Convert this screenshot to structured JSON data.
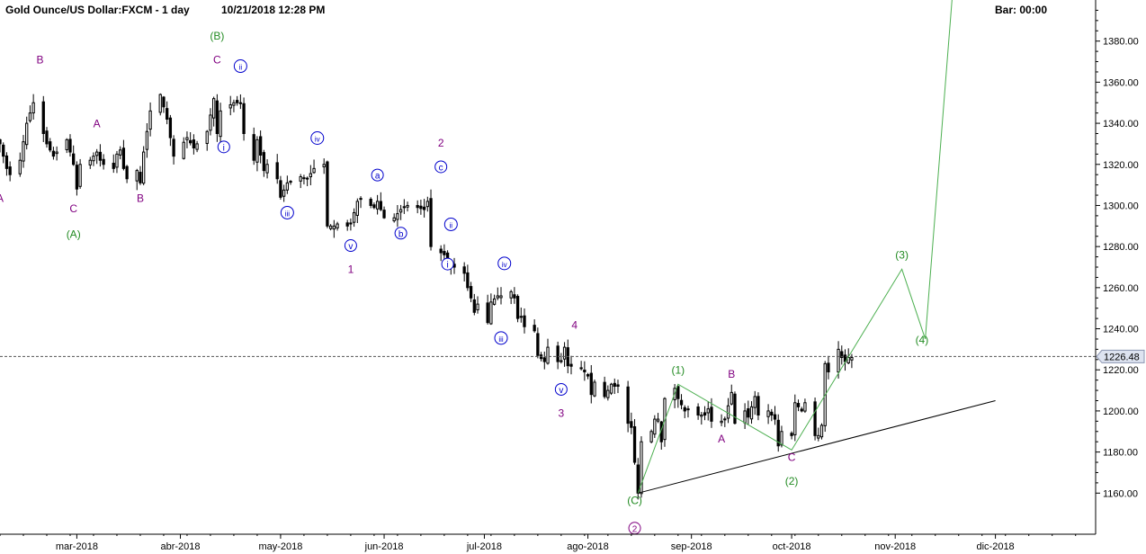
{
  "header": {
    "title": "Gold Ounce/US Dollar:FXCM - 1 day",
    "datetime": "10/21/2018 12:28 PM",
    "bar_label": "Bar: 00:00"
  },
  "colors": {
    "background": "#ffffff",
    "candle": "#000000",
    "wave_green": "#228b22",
    "wave_purple": "#800080",
    "wave_blue": "#0000cc",
    "projection_line": "#4caf50",
    "trendline": "#000000",
    "price_tag": "#dde3f0"
  },
  "chart_data": {
    "type": "candlestick",
    "title": "Gold Ounce/US Dollar:FXCM - 1 day",
    "x_axis": {
      "type": "date",
      "range": [
        "2018-02-06",
        "2018-12-31"
      ],
      "ticks": [
        {
          "date": "2018-03-01",
          "label": "mar-2018"
        },
        {
          "date": "2018-04-01",
          "label": "abr-2018"
        },
        {
          "date": "2018-05-01",
          "label": "may-2018"
        },
        {
          "date": "2018-06-01",
          "label": "jun-2018"
        },
        {
          "date": "2018-07-01",
          "label": "jul-2018"
        },
        {
          "date": "2018-08-01",
          "label": "ago-2018"
        },
        {
          "date": "2018-09-01",
          "label": "sep-2018"
        },
        {
          "date": "2018-10-01",
          "label": "oct-2018"
        },
        {
          "date": "2018-11-01",
          "label": "nov-2018"
        },
        {
          "date": "2018-12-01",
          "label": "dic-2018"
        }
      ]
    },
    "y_axis": {
      "range": [
        1140,
        1400
      ],
      "ticks": [
        1160,
        1180,
        1200,
        1220,
        1240,
        1260,
        1280,
        1300,
        1320,
        1340,
        1360,
        1380
      ],
      "tick_labels": [
        "1160.00",
        "1180.00",
        "1200.00",
        "1220.00",
        "1240.00",
        "1260.00",
        "1280.00",
        "1300.00",
        "1320.00",
        "1340.00",
        "1360.00",
        "1380.00"
      ],
      "side": "right"
    },
    "current_price": {
      "value": 1226.48,
      "label": "1226.48"
    },
    "price_path": [
      [
        "2018-02-06",
        1330
      ],
      [
        "2018-02-08",
        1318
      ],
      [
        "2018-02-09",
        1315
      ],
      [
        "2018-02-12",
        1322
      ],
      [
        "2018-02-14",
        1340
      ],
      [
        "2018-02-16",
        1350
      ],
      [
        "2018-02-20",
        1330
      ],
      [
        "2018-02-22",
        1324
      ],
      [
        "2018-02-26",
        1332
      ],
      [
        "2018-02-28",
        1320
      ],
      [
        "2018-03-01",
        1308
      ],
      [
        "2018-03-02",
        1320
      ],
      [
        "2018-03-05",
        1322
      ],
      [
        "2018-03-07",
        1326
      ],
      [
        "2018-03-08",
        1322
      ],
      [
        "2018-03-09",
        1320
      ],
      [
        "2018-03-12",
        1318
      ],
      [
        "2018-03-13",
        1325
      ],
      [
        "2018-03-14",
        1327
      ],
      [
        "2018-03-15",
        1318
      ],
      [
        "2018-03-16",
        1313
      ],
      [
        "2018-03-19",
        1317
      ],
      [
        "2018-03-20",
        1311
      ],
      [
        "2018-03-21",
        1326
      ],
      [
        "2018-03-23",
        1346
      ],
      [
        "2018-03-26",
        1354
      ],
      [
        "2018-03-28",
        1342
      ],
      [
        "2018-03-30",
        1324
      ],
      [
        "2018-04-03",
        1333
      ],
      [
        "2018-04-05",
        1328
      ],
      [
        "2018-04-09",
        1336
      ],
      [
        "2018-04-11",
        1352
      ],
      [
        "2018-04-12",
        1335
      ],
      [
        "2018-04-13",
        1346
      ],
      [
        "2018-04-17",
        1350
      ],
      [
        "2018-04-19",
        1350
      ],
      [
        "2018-04-20",
        1335
      ],
      [
        "2018-04-23",
        1322
      ],
      [
        "2018-04-24",
        1332
      ],
      [
        "2018-04-26",
        1317
      ],
      [
        "2018-04-27",
        1320
      ],
      [
        "2018-04-30",
        1313
      ],
      [
        "2018-05-01",
        1304
      ],
      [
        "2018-05-03",
        1311
      ],
      [
        "2018-05-07",
        1314
      ],
      [
        "2018-05-09",
        1313
      ],
      [
        "2018-05-11",
        1318
      ],
      [
        "2018-05-14",
        1320
      ],
      [
        "2018-05-15",
        1290
      ],
      [
        "2018-05-17",
        1290
      ],
      [
        "2018-05-18",
        1291
      ],
      [
        "2018-05-21",
        1290
      ],
      [
        "2018-05-22",
        1291
      ],
      [
        "2018-05-24",
        1302
      ],
      [
        "2018-05-25",
        1303
      ],
      [
        "2018-05-29",
        1299
      ],
      [
        "2018-05-30",
        1302
      ],
      [
        "2018-06-01",
        1294
      ],
      [
        "2018-06-04",
        1294
      ],
      [
        "2018-06-06",
        1298
      ],
      [
        "2018-06-08",
        1300
      ],
      [
        "2018-06-11",
        1299
      ],
      [
        "2018-06-13",
        1298
      ],
      [
        "2018-06-14",
        1302
      ],
      [
        "2018-06-15",
        1280
      ],
      [
        "2018-06-19",
        1276
      ],
      [
        "2018-06-20",
        1271
      ],
      [
        "2018-06-22",
        1270
      ],
      [
        "2018-06-25",
        1267
      ],
      [
        "2018-06-26",
        1260
      ],
      [
        "2018-06-27",
        1255
      ],
      [
        "2018-06-28",
        1248
      ],
      [
        "2018-06-29",
        1252
      ],
      [
        "2018-07-02",
        1243
      ],
      [
        "2018-07-03",
        1253
      ],
      [
        "2018-07-05",
        1256
      ],
      [
        "2018-07-06",
        1256
      ],
      [
        "2018-07-09",
        1258
      ],
      [
        "2018-07-10",
        1255
      ],
      [
        "2018-07-11",
        1245
      ],
      [
        "2018-07-12",
        1246
      ],
      [
        "2018-07-13",
        1241
      ],
      [
        "2018-07-16",
        1239
      ],
      [
        "2018-07-17",
        1227
      ],
      [
        "2018-07-19",
        1224
      ],
      [
        "2018-07-20",
        1231
      ],
      [
        "2018-07-23",
        1224
      ],
      [
        "2018-07-24",
        1224
      ],
      [
        "2018-07-25",
        1231
      ],
      [
        "2018-07-26",
        1222
      ],
      [
        "2018-07-30",
        1221
      ],
      [
        "2018-08-01",
        1217
      ],
      [
        "2018-08-02",
        1208
      ],
      [
        "2018-08-03",
        1214
      ],
      [
        "2018-08-06",
        1207
      ],
      [
        "2018-08-08",
        1213
      ],
      [
        "2018-08-09",
        1212
      ],
      [
        "2018-08-10",
        1212
      ],
      [
        "2018-08-13",
        1194
      ],
      [
        "2018-08-14",
        1192
      ],
      [
        "2018-08-15",
        1175
      ],
      [
        "2018-08-16",
        1160
      ],
      [
        "2018-08-17",
        1185
      ],
      [
        "2018-08-20",
        1190
      ],
      [
        "2018-08-21",
        1196
      ],
      [
        "2018-08-22",
        1196
      ],
      [
        "2018-08-23",
        1185
      ],
      [
        "2018-08-24",
        1206
      ],
      [
        "2018-08-27",
        1211
      ],
      [
        "2018-08-28",
        1206
      ],
      [
        "2018-08-30",
        1200
      ],
      [
        "2018-08-31",
        1201
      ],
      [
        "2018-09-03",
        1198
      ],
      [
        "2018-09-05",
        1198
      ],
      [
        "2018-09-06",
        1201
      ],
      [
        "2018-09-07",
        1195
      ],
      [
        "2018-09-10",
        1195
      ],
      [
        "2018-09-11",
        1196
      ],
      [
        "2018-09-13",
        1209
      ],
      [
        "2018-09-14",
        1194
      ],
      [
        "2018-09-17",
        1200
      ],
      [
        "2018-09-18",
        1197
      ],
      [
        "2018-09-20",
        1207
      ],
      [
        "2018-09-21",
        1198
      ],
      [
        "2018-09-24",
        1200
      ],
      [
        "2018-09-26",
        1196
      ],
      [
        "2018-09-27",
        1183
      ],
      [
        "2018-09-28",
        1190
      ],
      [
        "2018-10-01",
        1188
      ],
      [
        "2018-10-02",
        1204
      ],
      [
        "2018-10-04",
        1200
      ],
      [
        "2018-10-05",
        1204
      ],
      [
        "2018-10-08",
        1188
      ],
      [
        "2018-10-09",
        1188
      ],
      [
        "2018-10-10",
        1193
      ],
      [
        "2018-10-11",
        1223
      ],
      [
        "2018-10-12",
        1219
      ],
      [
        "2018-10-15",
        1230
      ],
      [
        "2018-10-16",
        1226
      ],
      [
        "2018-10-17",
        1224
      ],
      [
        "2018-10-18",
        1226
      ],
      [
        "2018-10-19",
        1226
      ]
    ],
    "wave_labels": [
      {
        "date": "2018-02-06",
        "price": 1307,
        "text": "A",
        "color": "purple",
        "anchor": "below"
      },
      {
        "date": "2018-02-18",
        "price": 1366,
        "text": "B",
        "color": "purple",
        "anchor": "above"
      },
      {
        "date": "2018-02-28",
        "price": 1302,
        "text": "C",
        "color": "purple",
        "anchor": "below"
      },
      {
        "date": "2018-02-28",
        "price": 1296,
        "text": "(A)",
        "color": "green",
        "anchor": "below2"
      },
      {
        "date": "2018-03-07",
        "price": 1335,
        "text": "A",
        "color": "purple",
        "anchor": "above"
      },
      {
        "date": "2018-03-20",
        "price": 1307,
        "text": "B",
        "color": "purple",
        "anchor": "below"
      },
      {
        "date": "2018-04-12",
        "price": 1366,
        "text": "C",
        "color": "purple",
        "anchor": "above"
      },
      {
        "date": "2018-04-12",
        "price": 1372,
        "text": "(B)",
        "color": "green",
        "anchor": "above2"
      },
      {
        "date": "2018-04-19",
        "price": 1363,
        "text": "ii",
        "color": "blue",
        "circled": true,
        "anchor": "above"
      },
      {
        "date": "2018-04-14",
        "price": 1332,
        "text": "i",
        "color": "blue",
        "circled": true,
        "anchor": "below"
      },
      {
        "date": "2018-05-12",
        "price": 1328,
        "text": "iv",
        "color": "blue",
        "circled": true,
        "anchor": "above"
      },
      {
        "date": "2018-05-03",
        "price": 1300,
        "text": "iii",
        "color": "blue",
        "circled": true,
        "anchor": "below"
      },
      {
        "date": "2018-05-22",
        "price": 1284,
        "text": "v",
        "color": "blue",
        "circled": true,
        "anchor": "below"
      },
      {
        "date": "2018-05-22",
        "price": 1279,
        "text": "1",
        "color": "purple",
        "anchor": "below2"
      },
      {
        "date": "2018-05-30",
        "price": 1310,
        "text": "a",
        "color": "blue",
        "circled": true,
        "anchor": "above"
      },
      {
        "date": "2018-06-06",
        "price": 1290,
        "text": "b",
        "color": "blue",
        "circled": true,
        "anchor": "below"
      },
      {
        "date": "2018-06-18",
        "price": 1314,
        "text": "c",
        "color": "blue",
        "circled": true,
        "anchor": "above"
      },
      {
        "date": "2018-06-18",
        "price": 1320,
        "text": "2",
        "color": "purple",
        "anchor": "above2"
      },
      {
        "date": "2018-06-21",
        "price": 1286,
        "text": "ii",
        "color": "blue",
        "circled": true,
        "anchor": "above"
      },
      {
        "date": "2018-06-20",
        "price": 1275,
        "text": "i",
        "color": "blue",
        "circled": true,
        "anchor": "below"
      },
      {
        "date": "2018-07-07",
        "price": 1267,
        "text": "iv",
        "color": "blue",
        "circled": true,
        "anchor": "above"
      },
      {
        "date": "2018-07-06",
        "price": 1239,
        "text": "iii",
        "color": "blue",
        "circled": true,
        "anchor": "below"
      },
      {
        "date": "2018-07-28",
        "price": 1237,
        "text": "4",
        "color": "purple",
        "anchor": "above"
      },
      {
        "date": "2018-07-24",
        "price": 1214,
        "text": "v",
        "color": "blue",
        "circled": true,
        "anchor": "below"
      },
      {
        "date": "2018-07-24",
        "price": 1209,
        "text": "3",
        "color": "purple",
        "anchor": "below2"
      },
      {
        "date": "2018-08-15",
        "price": 1160,
        "text": "(C)",
        "color": "green",
        "anchor": "below"
      },
      {
        "date": "2018-08-15",
        "price": 1153,
        "text": "2",
        "color": "purple",
        "circled": true,
        "anchor": "below2"
      },
      {
        "date": "2018-08-28",
        "price": 1215,
        "text": "(1)",
        "color": "green",
        "anchor": "above"
      },
      {
        "date": "2018-09-13",
        "price": 1213,
        "text": "B",
        "color": "purple",
        "anchor": "above"
      },
      {
        "date": "2018-09-10",
        "price": 1190,
        "text": "A",
        "color": "purple",
        "anchor": "below"
      },
      {
        "date": "2018-10-01",
        "price": 1181,
        "text": "C",
        "color": "purple",
        "anchor": "below"
      },
      {
        "date": "2018-10-01",
        "price": 1176,
        "text": "(2)",
        "color": "green",
        "anchor": "below2"
      },
      {
        "date": "2018-11-03",
        "price": 1271,
        "text": "(3)",
        "color": "green",
        "anchor": "above"
      },
      {
        "date": "2018-11-09",
        "price": 1238,
        "text": "(4)",
        "color": "green",
        "anchor": "below"
      }
    ],
    "projection_path": [
      [
        "2018-08-16",
        1160
      ],
      [
        "2018-08-28",
        1213
      ],
      [
        "2018-10-01",
        1181
      ],
      [
        "2018-11-03",
        1269
      ],
      [
        "2018-11-10",
        1235
      ],
      [
        "2018-11-18",
        1400
      ]
    ],
    "trendline": [
      [
        "2018-08-16",
        1160
      ],
      [
        "2018-12-01",
        1205
      ]
    ],
    "legend": "none",
    "grid": false
  }
}
